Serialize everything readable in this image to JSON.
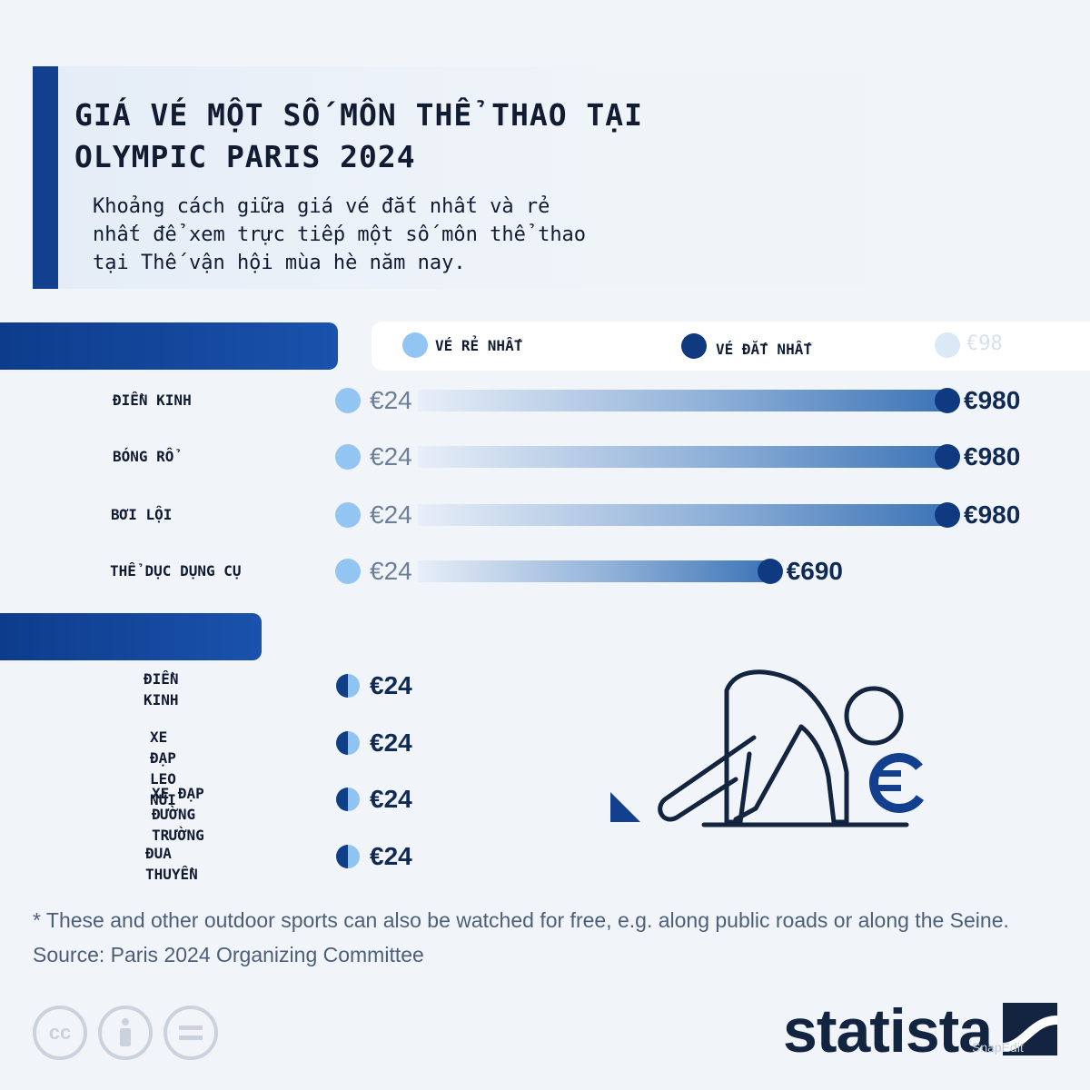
{
  "header": {
    "title_line1": "GIÁ VÉ MỘT SỐ MÔN THỂ THAO TẠI",
    "title_line2": "OLYMPIC PARIS 2024",
    "subtitle_line1": "Khoảng cách giữa giá vé đắt nhất và rẻ",
    "subtitle_line2": "nhất để xem trực tiếp một số môn thể thao",
    "subtitle_line3": "tại Thế vận hội mùa hè năm nay."
  },
  "legend": {
    "cheapest_label": "VÉ RẺ NHẤT",
    "most_expensive_label": "VÉ ĐẮT NHẤT",
    "faded_label": "€98"
  },
  "colors": {
    "cheapest": "#93c5f2",
    "most_expensive": "#0f3a80",
    "accent": "#12408f"
  },
  "chart_data": {
    "type": "bar",
    "categories": [
      "ĐIỀN KINH",
      "BÓNG RỔ",
      "BƠI LỘI",
      "THỂ DỤC DỤNG CỤ"
    ],
    "min_labels": [
      "€24",
      "€24",
      "€24",
      "€24"
    ],
    "max_labels": [
      "€980",
      "€980",
      "€980",
      "€690"
    ],
    "series": [
      {
        "name": "VÉ RẺ NHẤT",
        "values": [
          24,
          24,
          24,
          24
        ]
      },
      {
        "name": "VÉ ĐẮT NHẤT",
        "values": [
          980,
          980,
          980,
          690
        ]
      }
    ],
    "unit": "€"
  },
  "free_section": {
    "items": [
      {
        "label_line1": "ĐIỀN KINH",
        "label_line2": "",
        "price": "€24"
      },
      {
        "label_line1": "XE ĐẠP LEO NÚI",
        "label_line2": "",
        "price": "€24"
      },
      {
        "label_line1": "XE ĐẠP ĐƯỜNG",
        "label_line2": "TRƯỜNG",
        "price": "€24"
      },
      {
        "label_line1": "ĐUA THUYỀN",
        "label_line2": "",
        "price": "€24"
      }
    ],
    "icon": "sprinter-euro-icon"
  },
  "footer": {
    "note": "* These and other outdoor sports can also be watched for free, e.g. along public roads or along the Seine.",
    "source": "Source: Paris 2024 Organizing Committee",
    "license_icons": [
      "cc-icon",
      "attribution-icon",
      "no-derivatives-icon"
    ],
    "brand": "statista",
    "watermark": "SnapEdit"
  }
}
